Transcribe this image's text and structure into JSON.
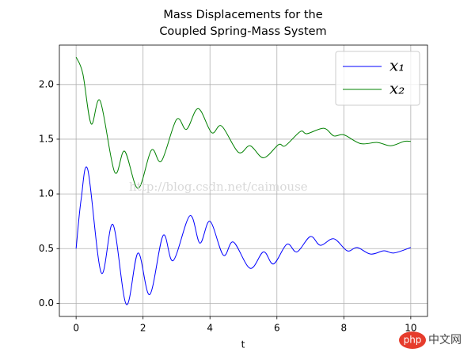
{
  "chart_data": {
    "type": "line",
    "title": [
      "Mass Displacements for the",
      "Coupled Spring-Mass System"
    ],
    "xlabel": "t",
    "xlim": [
      -0.5,
      10.5
    ],
    "ylim": [
      -0.12,
      2.36
    ],
    "xticks": [
      0,
      2,
      4,
      6,
      8,
      10
    ],
    "yticks": [
      {
        "value": 0,
        "label": "0.0"
      },
      0.5,
      {
        "value": 1,
        "label": "1.0"
      },
      1.5,
      {
        "value": 2,
        "label": "2.0"
      }
    ],
    "grid": true,
    "legend": "upper right",
    "annotations": [
      "http://blog.csdn.net/caimouse",
      "php",
      "中文网"
    ],
    "series": [
      {
        "name": "x₁",
        "color": "#0000ff",
        "x": [
          0,
          0.15,
          0.35,
          0.75,
          1.1,
          1.5,
          1.85,
          2.2,
          2.6,
          2.9,
          3.4,
          3.7,
          4.0,
          4.4,
          4.7,
          5.2,
          5.6,
          5.9,
          6.3,
          6.6,
          7.0,
          7.3,
          7.7,
          8.1,
          8.4,
          8.8,
          9.2,
          9.5,
          10
        ],
        "values": [
          0.5,
          0.95,
          1.22,
          0.28,
          0.72,
          -0.01,
          0.46,
          0.08,
          0.62,
          0.39,
          0.8,
          0.55,
          0.75,
          0.44,
          0.56,
          0.32,
          0.47,
          0.36,
          0.54,
          0.47,
          0.61,
          0.53,
          0.59,
          0.48,
          0.51,
          0.45,
          0.48,
          0.46,
          0.51
        ]
      },
      {
        "name": "x₂",
        "color": "#008000",
        "x": [
          0,
          0.2,
          0.45,
          0.72,
          1.15,
          1.45,
          1.85,
          2.25,
          2.55,
          3.0,
          3.3,
          3.65,
          4.05,
          4.35,
          4.85,
          5.2,
          5.6,
          6.05,
          6.25,
          6.7,
          6.9,
          7.4,
          7.7,
          8.0,
          8.5,
          9.0,
          9.4,
          9.8,
          10
        ],
        "values": [
          2.25,
          2.1,
          1.64,
          1.85,
          1.2,
          1.39,
          1.05,
          1.4,
          1.3,
          1.68,
          1.59,
          1.78,
          1.56,
          1.62,
          1.38,
          1.44,
          1.33,
          1.45,
          1.44,
          1.57,
          1.55,
          1.6,
          1.53,
          1.54,
          1.46,
          1.47,
          1.44,
          1.48,
          1.48
        ]
      }
    ]
  }
}
